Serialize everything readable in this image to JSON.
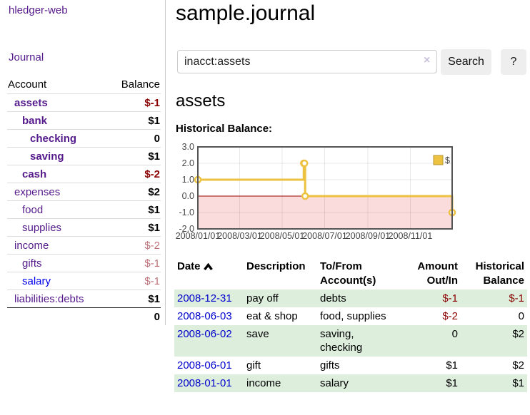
{
  "app": {
    "brand": "hledger-web",
    "nav_journal": "Journal"
  },
  "sidebar": {
    "header": {
      "account": "Account",
      "balance": "Balance"
    },
    "accounts": [
      {
        "name": "assets",
        "balance": "$-1"
      },
      {
        "name": "bank",
        "balance": "$1"
      },
      {
        "name": "checking",
        "balance": "0"
      },
      {
        "name": "saving",
        "balance": "$1"
      },
      {
        "name": "cash",
        "balance": "$-2"
      },
      {
        "name": "expenses",
        "balance": "$2"
      },
      {
        "name": "food",
        "balance": "$1"
      },
      {
        "name": "supplies",
        "balance": "$1"
      },
      {
        "name": "income",
        "balance": "$-2"
      },
      {
        "name": "gifts",
        "balance": "$-1"
      },
      {
        "name": "salary",
        "balance": "$-1"
      },
      {
        "name": "liabilities:debts",
        "balance": "$1"
      }
    ],
    "total": "0"
  },
  "header": {
    "title": "sample.journal"
  },
  "search": {
    "value": "inacct:assets",
    "clear_icon": "×",
    "button_label": "Search",
    "help_label": "?"
  },
  "account_page": {
    "title": "assets",
    "chart_label": "Historical Balance:"
  },
  "chart_data": {
    "type": "line",
    "title": "Historical Balance:",
    "series": [
      {
        "name": "$",
        "color": "#edc240",
        "step": true,
        "points": [
          [
            "2008-01-01",
            1
          ],
          [
            "2008-06-01",
            2
          ],
          [
            "2008-06-02",
            2
          ],
          [
            "2008-06-03",
            0
          ],
          [
            "2008-12-31",
            -1
          ]
        ]
      }
    ],
    "x_range": [
      "2008-01-01",
      "2008-12-31"
    ],
    "x_ticks": [
      "2008/01/01",
      "2008/03/01",
      "2008/05/01",
      "2008/07/01",
      "2008/09/01",
      "2008/11/01"
    ],
    "y_ticks": [
      "3.0",
      "2.0",
      "1.0",
      "0.0",
      "-1.0",
      "-2.0"
    ],
    "ylim": [
      -2,
      3
    ],
    "grid": true,
    "negative_region_color": "#fbdcdc",
    "zero_line_color": "#990000",
    "legend": {
      "label": "$",
      "position": "top-right"
    }
  },
  "register": {
    "headers": {
      "date": "Date",
      "description": "Description",
      "account": "To/From Account(s)",
      "amount": "Amount Out/In",
      "balance": "Historical Balance"
    },
    "rows": [
      {
        "date": "2008-12-31",
        "description": "pay off",
        "accounts": "debts",
        "amount": "$-1",
        "balance": "$-1"
      },
      {
        "date": "2008-06-03",
        "description": "eat & shop",
        "accounts": "food, supplies",
        "amount": "$-2",
        "balance": "0"
      },
      {
        "date": "2008-06-02",
        "description": "save",
        "accounts": "saving, checking",
        "amount": "0",
        "balance": "$2"
      },
      {
        "date": "2008-06-01",
        "description": "gift",
        "accounts": "gifts",
        "amount": "$1",
        "balance": "$2"
      },
      {
        "date": "2008-01-01",
        "description": "income",
        "accounts": "salary",
        "amount": "$1",
        "balance": "$1"
      }
    ]
  }
}
